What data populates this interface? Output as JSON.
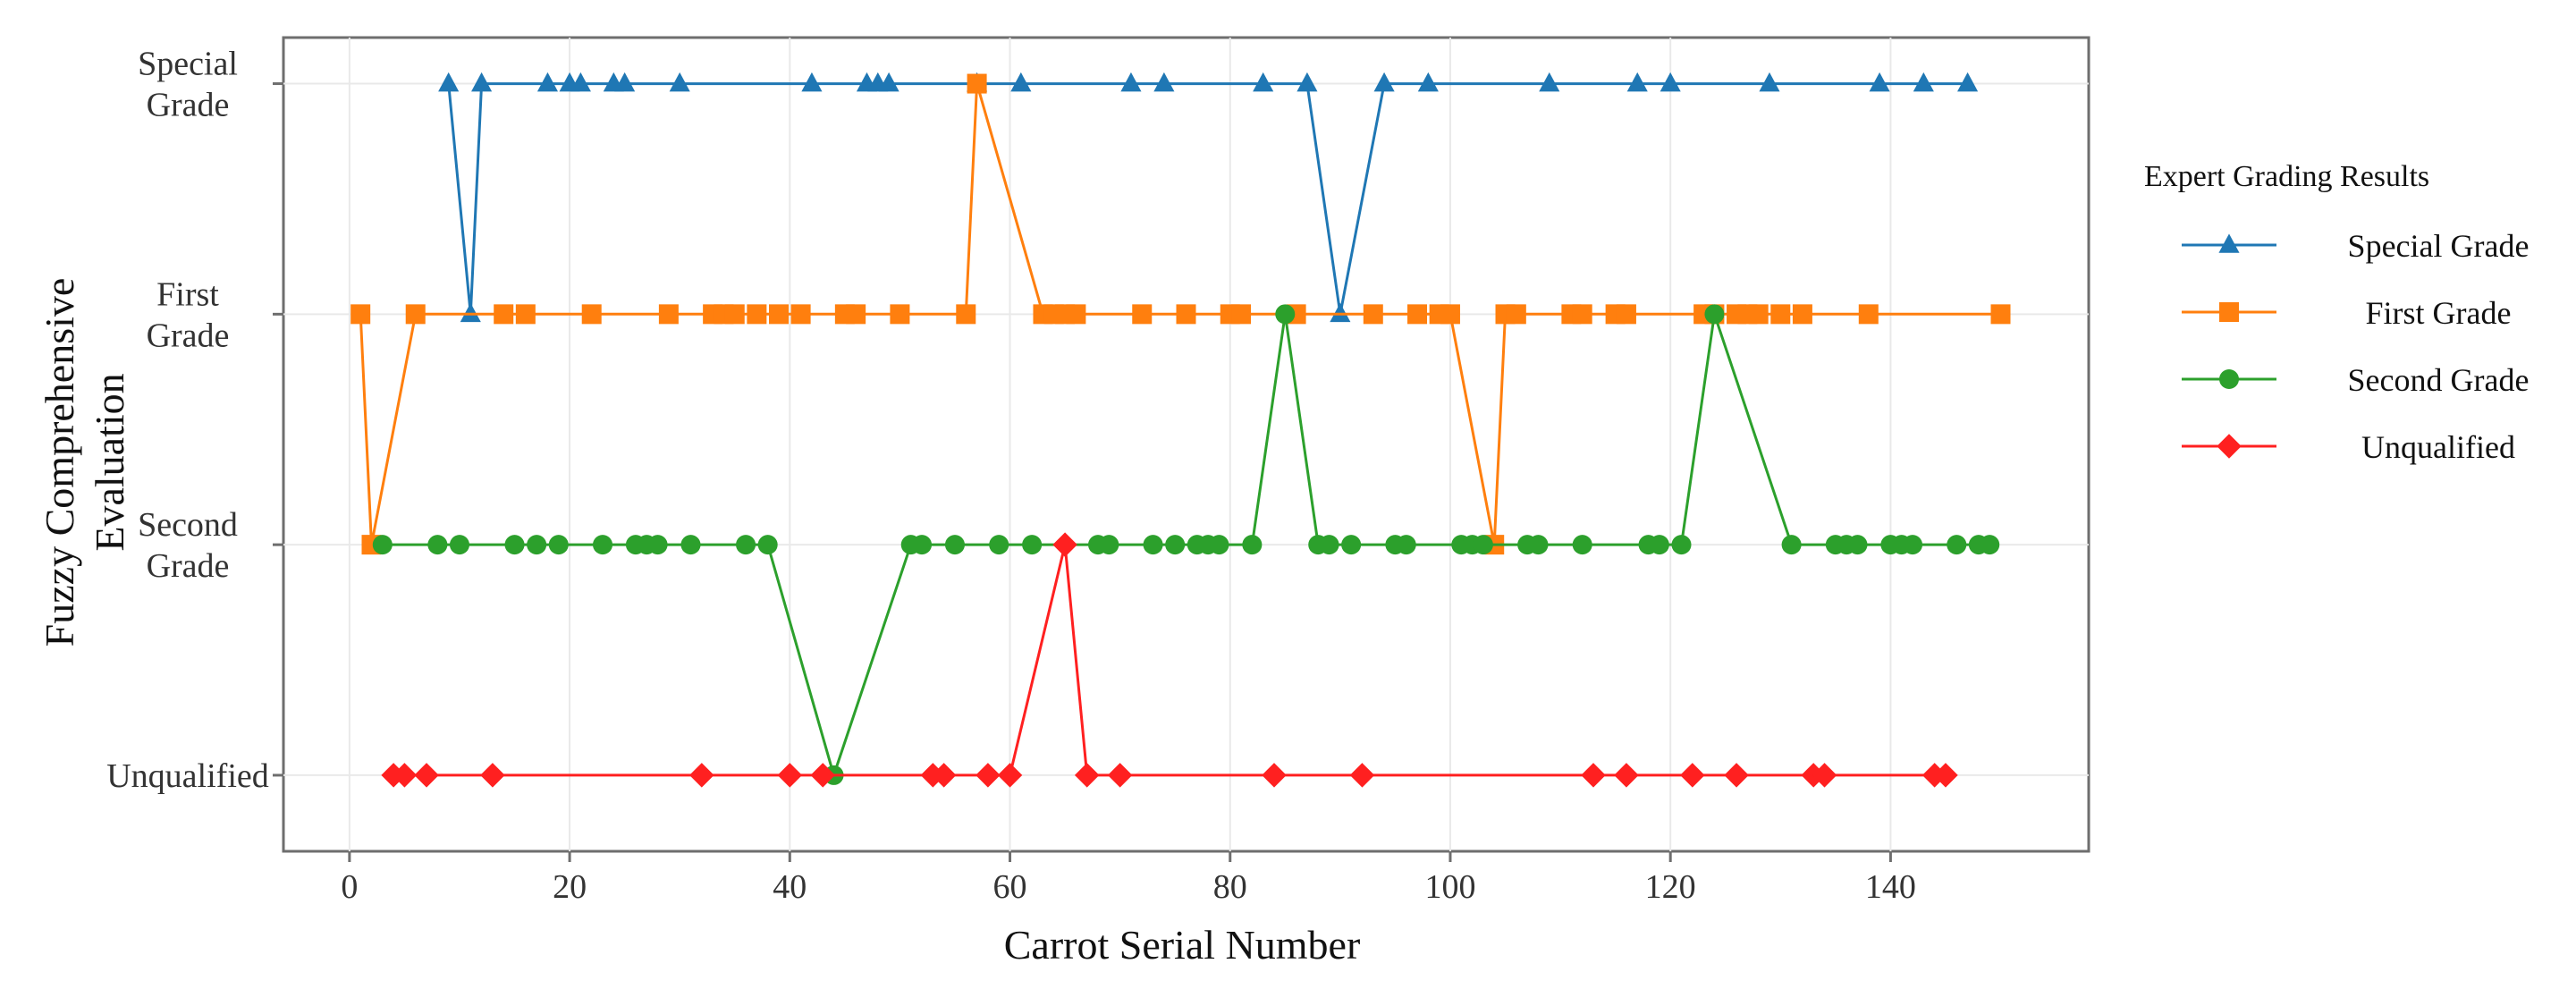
{
  "chart_data": {
    "type": "line",
    "title": "",
    "xlabel": "Carrot Serial Number",
    "ylabel": "Fuzzy Comprehensive Evaluation",
    "xlim": [
      -6,
      158
    ],
    "x_ticks": [
      0,
      20,
      40,
      60,
      80,
      100,
      120,
      140
    ],
    "y_levels": [
      {
        "value": 1,
        "label": "Unqualified",
        "lines": [
          "Unqualified"
        ]
      },
      {
        "value": 2,
        "label": "Second Grade",
        "lines": [
          "Second",
          "Grade"
        ]
      },
      {
        "value": 3,
        "label": "First Grade",
        "lines": [
          "First",
          "Grade"
        ]
      },
      {
        "value": 4,
        "label": "Special Grade",
        "lines": [
          "Special",
          "Grade"
        ]
      }
    ],
    "ylim": [
      0.67,
      4.2
    ],
    "grid": true,
    "legend": {
      "title": "Expert Grading Results",
      "placement": "right"
    },
    "series": [
      {
        "name": "Special Grade",
        "color": "#1f77b4",
        "marker": "triangle",
        "points": [
          [
            9,
            4
          ],
          [
            11,
            3
          ],
          [
            12,
            4
          ],
          [
            18,
            4
          ],
          [
            20,
            4
          ],
          [
            21,
            4
          ],
          [
            24,
            4
          ],
          [
            25,
            4
          ],
          [
            30,
            4
          ],
          [
            42,
            4
          ],
          [
            47,
            4
          ],
          [
            48,
            4
          ],
          [
            49,
            4
          ],
          [
            57,
            4
          ],
          [
            61,
            4
          ],
          [
            71,
            4
          ],
          [
            74,
            4
          ],
          [
            83,
            4
          ],
          [
            87,
            4
          ],
          [
            90,
            3
          ],
          [
            94,
            4
          ],
          [
            98,
            4
          ],
          [
            109,
            4
          ],
          [
            117,
            4
          ],
          [
            120,
            4
          ],
          [
            129,
            4
          ],
          [
            139,
            4
          ],
          [
            143,
            4
          ],
          [
            147,
            4
          ]
        ]
      },
      {
        "name": "First Grade",
        "color": "#ff7f0e",
        "marker": "square",
        "points": [
          [
            1,
            3
          ],
          [
            2,
            2
          ],
          [
            6,
            3
          ],
          [
            14,
            3
          ],
          [
            16,
            3
          ],
          [
            22,
            3
          ],
          [
            29,
            3
          ],
          [
            33,
            3
          ],
          [
            34,
            3
          ],
          [
            35,
            3
          ],
          [
            37,
            3
          ],
          [
            39,
            3
          ],
          [
            41,
            3
          ],
          [
            45,
            3
          ],
          [
            46,
            3
          ],
          [
            50,
            3
          ],
          [
            56,
            3
          ],
          [
            57,
            4
          ],
          [
            63,
            3
          ],
          [
            64,
            3
          ],
          [
            65,
            3
          ],
          [
            66,
            3
          ],
          [
            72,
            3
          ],
          [
            76,
            3
          ],
          [
            80,
            3
          ],
          [
            81,
            3
          ],
          [
            86,
            3
          ],
          [
            93,
            3
          ],
          [
            97,
            3
          ],
          [
            99,
            3
          ],
          [
            100,
            3
          ],
          [
            104,
            2
          ],
          [
            105,
            3
          ],
          [
            106,
            3
          ],
          [
            111,
            3
          ],
          [
            112,
            3
          ],
          [
            115,
            3
          ],
          [
            116,
            3
          ],
          [
            123,
            3
          ],
          [
            124,
            3
          ],
          [
            126,
            3
          ],
          [
            127,
            3
          ],
          [
            128,
            3
          ],
          [
            130,
            3
          ],
          [
            132,
            3
          ],
          [
            138,
            3
          ],
          [
            150,
            3
          ]
        ]
      },
      {
        "name": "Second Grade",
        "color": "#2ca02c",
        "marker": "circle",
        "points": [
          [
            3,
            2
          ],
          [
            8,
            2
          ],
          [
            10,
            2
          ],
          [
            15,
            2
          ],
          [
            17,
            2
          ],
          [
            19,
            2
          ],
          [
            23,
            2
          ],
          [
            26,
            2
          ],
          [
            27,
            2
          ],
          [
            28,
            2
          ],
          [
            31,
            2
          ],
          [
            36,
            2
          ],
          [
            38,
            2
          ],
          [
            44,
            1
          ],
          [
            51,
            2
          ],
          [
            52,
            2
          ],
          [
            55,
            2
          ],
          [
            59,
            2
          ],
          [
            62,
            2
          ],
          [
            68,
            2
          ],
          [
            69,
            2
          ],
          [
            73,
            2
          ],
          [
            75,
            2
          ],
          [
            77,
            2
          ],
          [
            78,
            2
          ],
          [
            79,
            2
          ],
          [
            82,
            2
          ],
          [
            85,
            3
          ],
          [
            88,
            2
          ],
          [
            89,
            2
          ],
          [
            91,
            2
          ],
          [
            95,
            2
          ],
          [
            96,
            2
          ],
          [
            101,
            2
          ],
          [
            102,
            2
          ],
          [
            103,
            2
          ],
          [
            107,
            2
          ],
          [
            108,
            2
          ],
          [
            112,
            2
          ],
          [
            118,
            2
          ],
          [
            119,
            2
          ],
          [
            121,
            2
          ],
          [
            124,
            3
          ],
          [
            131,
            2
          ],
          [
            135,
            2
          ],
          [
            136,
            2
          ],
          [
            137,
            2
          ],
          [
            140,
            2
          ],
          [
            141,
            2
          ],
          [
            142,
            2
          ],
          [
            146,
            2
          ],
          [
            148,
            2
          ],
          [
            149,
            2
          ]
        ]
      },
      {
        "name": "Unqualified",
        "color": "#ff2020",
        "marker": "diamond",
        "points": [
          [
            4,
            1
          ],
          [
            5,
            1
          ],
          [
            7,
            1
          ],
          [
            13,
            1
          ],
          [
            32,
            1
          ],
          [
            40,
            1
          ],
          [
            43,
            1
          ],
          [
            53,
            1
          ],
          [
            54,
            1
          ],
          [
            58,
            1
          ],
          [
            60,
            1
          ],
          [
            65,
            2
          ],
          [
            67,
            1
          ],
          [
            70,
            1
          ],
          [
            84,
            1
          ],
          [
            92,
            1
          ],
          [
            113,
            1
          ],
          [
            116,
            1
          ],
          [
            122,
            1
          ],
          [
            126,
            1
          ],
          [
            133,
            1
          ],
          [
            134,
            1
          ],
          [
            144,
            1
          ],
          [
            145,
            1
          ]
        ]
      }
    ]
  }
}
